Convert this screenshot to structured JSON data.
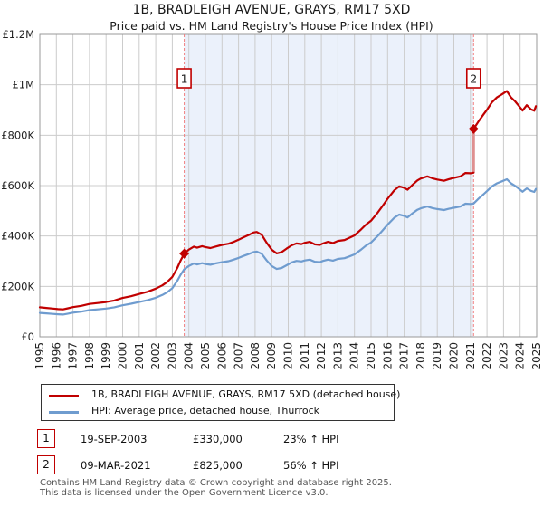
{
  "title": "1B, BRADLEIGH AVENUE, GRAYS, RM17 5XD",
  "subtitle": "Price paid vs. HM Land Registry's House Price Index (HPI)",
  "colors": {
    "property": "#c00000",
    "hpi": "#6f9ccf",
    "grid": "#cccccc",
    "plot_border": "#999999",
    "band": "#ebf1fb",
    "dashed_line": "#f08080",
    "connector": "#df9090",
    "marker_box_border": "#c00000",
    "axis_text": "#222222",
    "footer_text": "#555555"
  },
  "chart_data": {
    "type": "line",
    "title": "1B, BRADLEIGH AVENUE, GRAYS, RM17 5XD",
    "subtitle": "Price paid vs. HM Land Registry's House Price Index (HPI)",
    "xlim": [
      1995,
      2025
    ],
    "ylim": [
      0,
      1200000
    ],
    "grid": true,
    "x_ticks": [
      1995,
      1996,
      1997,
      1998,
      1999,
      2000,
      2001,
      2002,
      2003,
      2004,
      2005,
      2006,
      2007,
      2008,
      2009,
      2010,
      2011,
      2012,
      2013,
      2014,
      2015,
      2016,
      2017,
      2018,
      2019,
      2020,
      2021,
      2022,
      2023,
      2024,
      2025
    ],
    "y_ticks": [
      {
        "value": 0,
        "label": "£0"
      },
      {
        "value": 200000,
        "label": "£200K"
      },
      {
        "value": 400000,
        "label": "£400K"
      },
      {
        "value": 600000,
        "label": "£600K"
      },
      {
        "value": 800000,
        "label": "£800K"
      },
      {
        "value": 1000000,
        "label": "£1M"
      },
      {
        "value": 1200000,
        "label": "£1.2M"
      }
    ],
    "shaded_band": {
      "from_year": 2003.72,
      "to_year": 2021.19
    },
    "sale_markers": [
      {
        "label": "1",
        "year": 2003.72,
        "price": 330000
      },
      {
        "label": "2",
        "year": 2021.19,
        "price": 825000
      }
    ],
    "series": [
      {
        "name": "1B, BRADLEIGH AVENUE, GRAYS, RM17 5XD (detached house)",
        "color_key": "property",
        "connector": {
          "year": 2021.19,
          "from": 651000,
          "to": 825000
        },
        "segments": [
          [
            [
              1995.0,
              117000
            ],
            [
              1995.4,
              114500
            ],
            [
              1995.8,
              112000
            ],
            [
              1996.1,
              110000
            ],
            [
              1996.4,
              109000
            ],
            [
              1996.7,
              113000
            ],
            [
              1997.0,
              118000
            ],
            [
              1997.5,
              123000
            ],
            [
              1998.0,
              130500
            ],
            [
              1998.5,
              134000
            ],
            [
              1999.0,
              138000
            ],
            [
              1999.5,
              144000
            ],
            [
              2000.0,
              154000
            ],
            [
              2000.5,
              161000
            ],
            [
              2001.0,
              170000
            ],
            [
              2001.5,
              178500
            ],
            [
              2002.0,
              191000
            ],
            [
              2002.4,
              204000
            ],
            [
              2002.7,
              218000
            ],
            [
              2003.0,
              237500
            ],
            [
              2003.3,
              273000
            ],
            [
              2003.5,
              303000
            ],
            [
              2003.72,
              330000
            ],
            [
              2004.0,
              346000
            ],
            [
              2004.3,
              358000
            ],
            [
              2004.5,
              353500
            ],
            [
              2004.8,
              359500
            ],
            [
              2005.0,
              356000
            ],
            [
              2005.3,
              352000
            ],
            [
              2005.6,
              358000
            ],
            [
              2006.0,
              364500
            ],
            [
              2006.4,
              369500
            ],
            [
              2006.7,
              376500
            ],
            [
              2007.0,
              385000
            ],
            [
              2007.3,
              395000
            ],
            [
              2007.6,
              404000
            ],
            [
              2007.9,
              414000
            ],
            [
              2008.1,
              416000
            ],
            [
              2008.4,
              405000
            ],
            [
              2008.7,
              373000
            ],
            [
              2009.0,
              346000
            ],
            [
              2009.3,
              331000
            ],
            [
              2009.6,
              336000
            ],
            [
              2009.9,
              350000
            ],
            [
              2010.2,
              363000
            ],
            [
              2010.5,
              370500
            ],
            [
              2010.8,
              368000
            ],
            [
              2011.0,
              373000
            ],
            [
              2011.3,
              377000
            ],
            [
              2011.6,
              367000
            ],
            [
              2011.9,
              364500
            ],
            [
              2012.1,
              370500
            ],
            [
              2012.4,
              377000
            ],
            [
              2012.7,
              372000
            ],
            [
              2013.0,
              380500
            ],
            [
              2013.4,
              384000
            ],
            [
              2013.7,
              393000
            ],
            [
              2014.0,
              402500
            ],
            [
              2014.4,
              426000
            ],
            [
              2014.7,
              445500
            ],
            [
              2015.0,
              460500
            ],
            [
              2015.4,
              492500
            ],
            [
              2015.7,
              519500
            ],
            [
              2016.0,
              548000
            ],
            [
              2016.4,
              581000
            ],
            [
              2016.7,
              597000
            ],
            [
              2017.0,
              591000
            ],
            [
              2017.2,
              583500
            ],
            [
              2017.5,
              603000
            ],
            [
              2017.8,
              620500
            ],
            [
              2018.0,
              628000
            ],
            [
              2018.4,
              636500
            ],
            [
              2018.7,
              629000
            ],
            [
              2019.0,
              624000
            ],
            [
              2019.4,
              619000
            ],
            [
              2019.7,
              625500
            ],
            [
              2020.0,
              630500
            ],
            [
              2020.4,
              636500
            ],
            [
              2020.7,
              650000
            ],
            [
              2021.0,
              649000
            ],
            [
              2021.19,
              651000
            ]
          ],
          [
            [
              2021.19,
              825000
            ],
            [
              2021.5,
              856000
            ],
            [
              2021.8,
              883000
            ],
            [
              2022.0,
              901000
            ],
            [
              2022.3,
              931000
            ],
            [
              2022.6,
              950000
            ],
            [
              2022.9,
              962000
            ],
            [
              2023.2,
              975000
            ],
            [
              2023.45,
              950000
            ],
            [
              2023.7,
              934000
            ],
            [
              2023.95,
              914000
            ],
            [
              2024.15,
              898000
            ],
            [
              2024.4,
              919000
            ],
            [
              2024.65,
              903000
            ],
            [
              2024.85,
              897000
            ],
            [
              2024.95,
              915000
            ]
          ]
        ]
      },
      {
        "name": "HPI: Average price, detached house, Thurrock",
        "color_key": "hpi",
        "segments": [
          [
            [
              1995.0,
              95000
            ],
            [
              1995.4,
              93000
            ],
            [
              1995.8,
              91000
            ],
            [
              1996.1,
              89500
            ],
            [
              1996.4,
              88500
            ],
            [
              1996.7,
              92000
            ],
            [
              1997.0,
              96000
            ],
            [
              1997.5,
              100000
            ],
            [
              1998.0,
              106000
            ],
            [
              1998.5,
              109000
            ],
            [
              1999.0,
              112000
            ],
            [
              1999.5,
              117000
            ],
            [
              2000.0,
              125000
            ],
            [
              2000.5,
              131000
            ],
            [
              2001.0,
              138000
            ],
            [
              2001.5,
              145000
            ],
            [
              2002.0,
              155000
            ],
            [
              2002.4,
              166000
            ],
            [
              2002.7,
              177000
            ],
            [
              2003.0,
              193000
            ],
            [
              2003.3,
              222000
            ],
            [
              2003.5,
              246000
            ],
            [
              2003.72,
              268000
            ],
            [
              2004.0,
              281000
            ],
            [
              2004.3,
              291000
            ],
            [
              2004.5,
              287000
            ],
            [
              2004.8,
              292000
            ],
            [
              2005.0,
              289000
            ],
            [
              2005.3,
              286000
            ],
            [
              2005.6,
              291000
            ],
            [
              2006.0,
              296000
            ],
            [
              2006.4,
              300000
            ],
            [
              2006.7,
              306000
            ],
            [
              2007.0,
              313000
            ],
            [
              2007.3,
              321000
            ],
            [
              2007.6,
              328000
            ],
            [
              2007.9,
              336000
            ],
            [
              2008.1,
              338000
            ],
            [
              2008.4,
              329000
            ],
            [
              2008.7,
              303000
            ],
            [
              2009.0,
              281000
            ],
            [
              2009.3,
              269000
            ],
            [
              2009.6,
              273000
            ],
            [
              2009.9,
              284000
            ],
            [
              2010.2,
              295000
            ],
            [
              2010.5,
              301000
            ],
            [
              2010.8,
              299000
            ],
            [
              2011.0,
              303000
            ],
            [
              2011.3,
              306000
            ],
            [
              2011.6,
              298000
            ],
            [
              2011.9,
              296000
            ],
            [
              2012.1,
              301000
            ],
            [
              2012.4,
              306000
            ],
            [
              2012.7,
              302000
            ],
            [
              2013.0,
              309000
            ],
            [
              2013.4,
              312000
            ],
            [
              2013.7,
              319000
            ],
            [
              2014.0,
              327000
            ],
            [
              2014.4,
              346000
            ],
            [
              2014.7,
              362000
            ],
            [
              2015.0,
              374000
            ],
            [
              2015.4,
              400000
            ],
            [
              2015.7,
              422000
            ],
            [
              2016.0,
              445000
            ],
            [
              2016.4,
              472000
            ],
            [
              2016.7,
              485000
            ],
            [
              2017.0,
              480000
            ],
            [
              2017.2,
              474000
            ],
            [
              2017.5,
              490000
            ],
            [
              2017.8,
              504000
            ],
            [
              2018.0,
              510000
            ],
            [
              2018.4,
              517000
            ],
            [
              2018.7,
              511000
            ],
            [
              2019.0,
              507000
            ],
            [
              2019.4,
              503000
            ],
            [
              2019.7,
              508000
            ],
            [
              2020.0,
              512000
            ],
            [
              2020.4,
              517000
            ],
            [
              2020.7,
              528000
            ],
            [
              2021.0,
              527000
            ],
            [
              2021.19,
              529000
            ],
            [
              2021.5,
              549000
            ],
            [
              2021.8,
              566000
            ],
            [
              2022.0,
              578000
            ],
            [
              2022.3,
              597000
            ],
            [
              2022.6,
              609000
            ],
            [
              2022.9,
              617000
            ],
            [
              2023.2,
              625000
            ],
            [
              2023.45,
              609000
            ],
            [
              2023.7,
              599000
            ],
            [
              2023.95,
              586000
            ],
            [
              2024.15,
              576000
            ],
            [
              2024.4,
              589000
            ],
            [
              2024.65,
              579000
            ],
            [
              2024.85,
              575000
            ],
            [
              2024.95,
              587000
            ]
          ]
        ]
      }
    ]
  },
  "legend": {
    "items": [
      {
        "label": "1B, BRADLEIGH AVENUE, GRAYS, RM17 5XD (detached house)",
        "color_key": "property"
      },
      {
        "label": "HPI: Average price, detached house, Thurrock",
        "color_key": "hpi"
      }
    ]
  },
  "annotations": [
    {
      "num": "1",
      "date": "19-SEP-2003",
      "price": "£330,000",
      "hpi_change": "23% ↑ HPI"
    },
    {
      "num": "2",
      "date": "09-MAR-2021",
      "price": "£825,000",
      "hpi_change": "56% ↑ HPI"
    }
  ],
  "footer": {
    "line1": "Contains HM Land Registry data © Crown copyright and database right 2025.",
    "line2": "This data is licensed under the Open Government Licence v3.0."
  }
}
